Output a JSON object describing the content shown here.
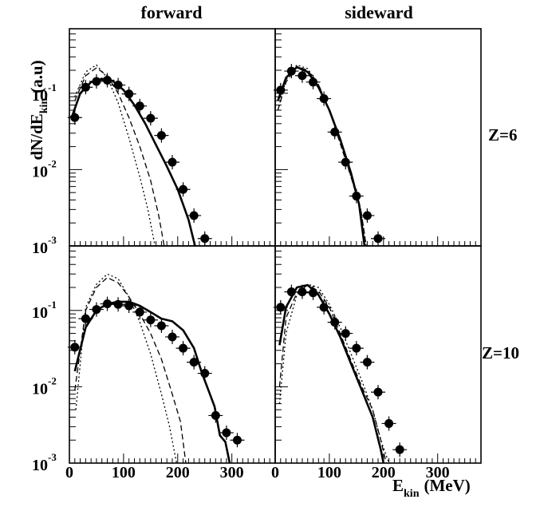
{
  "chart_data": {
    "type": "scatter",
    "columns": [
      "forward",
      "sideward"
    ],
    "rows": [
      "Z=6",
      "Z=10"
    ],
    "ylabel": "dN/dE",
    "ylabel_sub": "kin",
    "ylabel_unit": "(a.u)",
    "xlabel": "E",
    "xlabel_sub": "kin",
    "xlabel_unit": "(MeV)",
    "x_scale": "linear",
    "y_scale": "log",
    "xlim": [
      0,
      380
    ],
    "ylim": [
      0.001,
      0.7
    ],
    "x_ticks": [
      "0",
      "100",
      "200",
      "300"
    ],
    "y_ticks": [
      {
        "base": "10",
        "exp": "-1",
        "value": 0.1
      },
      {
        "base": "10",
        "exp": "-2",
        "value": 0.01
      },
      {
        "base": "10",
        "exp": "-3",
        "value": 0.001
      }
    ],
    "grid": false,
    "legend": "none",
    "panels": [
      {
        "column": "forward",
        "row": "Z=6",
        "points": [
          [
            10,
            0.048
          ],
          [
            30,
            0.12
          ],
          [
            50,
            0.143
          ],
          [
            70,
            0.148
          ],
          [
            90,
            0.128
          ],
          [
            110,
            0.098
          ],
          [
            130,
            0.068
          ],
          [
            150,
            0.047
          ],
          [
            170,
            0.028
          ],
          [
            190,
            0.0125
          ],
          [
            210,
            0.0055
          ],
          [
            230,
            0.0025
          ],
          [
            250,
            0.00125
          ]
        ],
        "lines": {
          "solid": [
            [
              5,
              0.05
            ],
            [
              20,
              0.1
            ],
            [
              40,
              0.14
            ],
            [
              60,
              0.155
            ],
            [
              80,
              0.145
            ],
            [
              100,
              0.11
            ],
            [
              120,
              0.07
            ],
            [
              140,
              0.04
            ],
            [
              160,
              0.021
            ],
            [
              180,
              0.011
            ],
            [
              200,
              0.0055
            ],
            [
              220,
              0.0022
            ],
            [
              232,
              0.001
            ]
          ],
          "dashed": [
            [
              10,
              0.08
            ],
            [
              30,
              0.17
            ],
            [
              50,
              0.215
            ],
            [
              70,
              0.17
            ],
            [
              90,
              0.1
            ],
            [
              110,
              0.048
            ],
            [
              130,
              0.02
            ],
            [
              150,
              0.0072
            ],
            [
              165,
              0.0025
            ],
            [
              175,
              0.001
            ]
          ],
          "dotted": [
            [
              10,
              0.09
            ],
            [
              30,
              0.19
            ],
            [
              50,
              0.235
            ],
            [
              70,
              0.16
            ],
            [
              90,
              0.075
            ],
            [
              110,
              0.026
            ],
            [
              130,
              0.008
            ],
            [
              145,
              0.003
            ],
            [
              158,
              0.001
            ]
          ]
        }
      },
      {
        "column": "sideward",
        "row": "Z=6",
        "points": [
          [
            10,
            0.11
          ],
          [
            30,
            0.195
          ],
          [
            50,
            0.17
          ],
          [
            70,
            0.14
          ],
          [
            90,
            0.085
          ],
          [
            110,
            0.031
          ],
          [
            130,
            0.0125
          ],
          [
            150,
            0.0045
          ],
          [
            170,
            0.0025
          ],
          [
            190,
            0.00125
          ]
        ],
        "lines": {
          "solid": [
            [
              5,
              0.08
            ],
            [
              20,
              0.16
            ],
            [
              40,
              0.22
            ],
            [
              60,
              0.19
            ],
            [
              80,
              0.12
            ],
            [
              100,
              0.06
            ],
            [
              120,
              0.025
            ],
            [
              140,
              0.009
            ],
            [
              155,
              0.0035
            ],
            [
              165,
              0.001
            ]
          ],
          "dashed": [
            [
              5,
              0.06
            ],
            [
              20,
              0.14
            ],
            [
              40,
              0.225
            ],
            [
              60,
              0.2
            ],
            [
              80,
              0.13
            ],
            [
              100,
              0.06
            ],
            [
              120,
              0.022
            ],
            [
              140,
              0.008
            ],
            [
              158,
              0.003
            ],
            [
              168,
              0.001
            ]
          ],
          "dotted": [
            [
              5,
              0.06
            ],
            [
              20,
              0.15
            ],
            [
              40,
              0.235
            ],
            [
              60,
              0.21
            ],
            [
              80,
              0.13
            ],
            [
              100,
              0.06
            ],
            [
              120,
              0.023
            ],
            [
              140,
              0.008
            ],
            [
              158,
              0.003
            ],
            [
              168,
              0.001
            ]
          ]
        }
      },
      {
        "column": "forward",
        "row": "Z=10",
        "points": [
          [
            10,
            0.033
          ],
          [
            30,
            0.078
          ],
          [
            50,
            0.103
          ],
          [
            70,
            0.122
          ],
          [
            90,
            0.12
          ],
          [
            110,
            0.115
          ],
          [
            130,
            0.095
          ],
          [
            150,
            0.075
          ],
          [
            170,
            0.063
          ],
          [
            190,
            0.045
          ],
          [
            210,
            0.032
          ],
          [
            230,
            0.021
          ],
          [
            250,
            0.015
          ],
          [
            270,
            0.0042
          ],
          [
            290,
            0.0025
          ],
          [
            310,
            0.002
          ]
        ],
        "lines": {
          "solid": [
            [
              10,
              0.016
            ],
            [
              30,
              0.06
            ],
            [
              50,
              0.1
            ],
            [
              70,
              0.122
            ],
            [
              90,
              0.13
            ],
            [
              110,
              0.13
            ],
            [
              130,
              0.115
            ],
            [
              150,
              0.095
            ],
            [
              170,
              0.078
            ],
            [
              190,
              0.072
            ],
            [
              210,
              0.055
            ],
            [
              230,
              0.032
            ],
            [
              245,
              0.015
            ],
            [
              258,
              0.0085
            ],
            [
              268,
              0.0055
            ],
            [
              278,
              0.0023
            ],
            [
              288,
              0.0019
            ],
            [
              296,
              0.001
            ]
          ],
          "dashed": [
            [
              10,
              0.009
            ],
            [
              30,
              0.1
            ],
            [
              50,
              0.2
            ],
            [
              70,
              0.27
            ],
            [
              90,
              0.23
            ],
            [
              110,
              0.15
            ],
            [
              130,
              0.09
            ],
            [
              150,
              0.05
            ],
            [
              170,
              0.023
            ],
            [
              190,
              0.008
            ],
            [
              205,
              0.0035
            ],
            [
              215,
              0.001
            ]
          ],
          "dotted": [
            [
              12,
              0.005
            ],
            [
              30,
              0.11
            ],
            [
              50,
              0.22
            ],
            [
              70,
              0.3
            ],
            [
              90,
              0.26
            ],
            [
              110,
              0.15
            ],
            [
              130,
              0.07
            ],
            [
              150,
              0.027
            ],
            [
              170,
              0.008
            ],
            [
              185,
              0.003
            ],
            [
              198,
              0.001
            ]
          ]
        }
      },
      {
        "column": "sideward",
        "row": "Z=10",
        "points": [
          [
            10,
            0.11
          ],
          [
            30,
            0.175
          ],
          [
            50,
            0.175
          ],
          [
            70,
            0.17
          ],
          [
            90,
            0.11
          ],
          [
            110,
            0.07
          ],
          [
            130,
            0.05
          ],
          [
            150,
            0.032
          ],
          [
            170,
            0.021
          ],
          [
            190,
            0.0085
          ],
          [
            210,
            0.0033
          ],
          [
            230,
            0.0015
          ]
        ],
        "lines": {
          "solid": [
            [
              8,
              0.035
            ],
            [
              20,
              0.11
            ],
            [
              40,
              0.2
            ],
            [
              60,
              0.215
            ],
            [
              80,
              0.16
            ],
            [
              100,
              0.09
            ],
            [
              120,
              0.045
            ],
            [
              140,
              0.02
            ],
            [
              160,
              0.009
            ],
            [
              180,
              0.004
            ],
            [
              195,
              0.0015
            ],
            [
              200,
              0.001
            ]
          ],
          "dashed": [
            [
              8,
              0.01
            ],
            [
              20,
              0.08
            ],
            [
              40,
              0.17
            ],
            [
              60,
              0.215
            ],
            [
              80,
              0.18
            ],
            [
              100,
              0.11
            ],
            [
              120,
              0.05
            ],
            [
              140,
              0.022
            ],
            [
              160,
              0.01
            ],
            [
              180,
              0.005
            ],
            [
              195,
              0.002
            ],
            [
              205,
              0.001
            ]
          ],
          "dotted": [
            [
              8,
              0.006
            ],
            [
              20,
              0.05
            ],
            [
              40,
              0.16
            ],
            [
              60,
              0.22
            ],
            [
              80,
              0.2
            ],
            [
              100,
              0.12
            ],
            [
              120,
              0.06
            ],
            [
              140,
              0.027
            ],
            [
              160,
              0.012
            ],
            [
              180,
              0.005
            ],
            [
              195,
              0.002
            ],
            [
              210,
              0.001
            ]
          ]
        }
      }
    ]
  }
}
